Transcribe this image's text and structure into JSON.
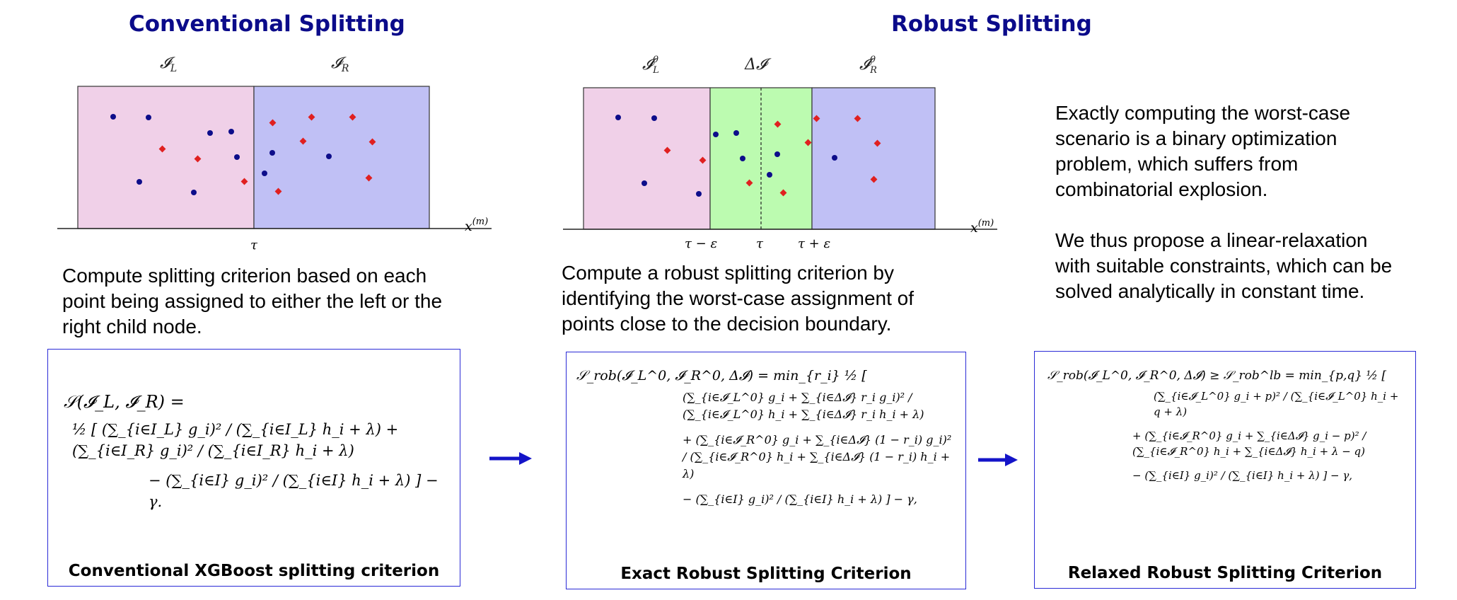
{
  "titles": {
    "left": "Conventional Splitting",
    "right": "Robust Splitting"
  },
  "left_diagram": {
    "region_labels": [
      "𝓘_L",
      "𝓘_R"
    ],
    "axis_label": "x^(m)",
    "tick_label": "τ",
    "colors": {
      "left_region": "#f0d0e8",
      "right_region": "#c0c0f5",
      "blue_point": "#0d0d8a",
      "red_point": "#e02020"
    }
  },
  "right_diagram": {
    "region_labels": [
      "𝓘_L^0",
      "Δ𝓘",
      "𝓘_R^0"
    ],
    "axis_label": "x^(m)",
    "tick_labels": [
      "τ − ε",
      "τ",
      "τ + ε"
    ],
    "colors": {
      "left_region": "#f0d0e8",
      "middle_region": "#bcfbb0",
      "right_region": "#c0c0f5"
    }
  },
  "texts": {
    "left_description": "Compute splitting criterion based on each point being assigned to either the left or the right child node.",
    "middle_description": "Compute a robust splitting criterion by identifying the worst-case assignment of points close to the decision boundary.",
    "right_paragraph_1": "Exactly computing the worst-case scenario is a binary optimization problem, which suffers from combinatorial explosion.",
    "right_paragraph_2": "We thus propose a linear-relaxation with suitable constraints, which can be solved analytically in constant time."
  },
  "formulas": {
    "conventional": {
      "lhs": "𝒮(𝓘_L, 𝓘_R) =",
      "line1": "½ [ (∑_{i∈I_L} g_i)² / (∑_{i∈I_L} h_i + λ) + (∑_{i∈I_R} g_i)² / (∑_{i∈I_R} h_i + λ)",
      "line2": "− (∑_{i∈I} g_i)² / (∑_{i∈I} h_i + λ) ] − γ."
    },
    "exact": {
      "lhs": "𝒮_rob(𝓘_L^0, 𝓘_R^0, Δ𝓘) = min_{r_i} ½ [",
      "line1": "(∑_{i∈𝓘_L^0} g_i + ∑_{i∈Δ𝓘} r_i g_i)² / (∑_{i∈𝓘_L^0} h_i + ∑_{i∈Δ𝓘} r_i h_i + λ)",
      "line2": "+ (∑_{i∈𝓘_R^0} g_i + ∑_{i∈Δ𝓘} (1 − r_i) g_i)² / (∑_{i∈𝓘_R^0} h_i + ∑_{i∈Δ𝓘} (1 − r_i) h_i + λ)",
      "line3": "− (∑_{i∈I} g_i)² / (∑_{i∈I} h_i + λ) ] − γ,"
    },
    "relaxed": {
      "lhs": "𝒮_rob(𝓘_L^0, 𝓘_R^0, Δ𝓘) ≥ 𝒮_rob^lb = min_{p,q} ½ [",
      "line1": "(∑_{i∈𝓘_L^0} g_i + p)² / (∑_{i∈𝓘_L^0} h_i + q + λ)",
      "line2": "+ (∑_{i∈𝓘_R^0} g_i + ∑_{i∈Δ𝓘} g_i − p)² / (∑_{i∈𝓘_R^0} h_i + ∑_{i∈Δ𝓘} h_i + λ − q)",
      "line3": "− (∑_{i∈I} g_i)² / (∑_{i∈I} h_i + λ) ] − γ,"
    }
  },
  "captions": {
    "conventional": "Conventional XGBoost splitting criterion",
    "exact": "Exact Robust Splitting Criterion",
    "relaxed": "Relaxed Robust Splitting Criterion"
  },
  "colors": {
    "title": "#0b0b8a",
    "box_border": "#2a2ad6",
    "arrow": "#1414c8"
  },
  "icons": {
    "arrow_1": "right-arrow-icon",
    "arrow_2": "right-arrow-icon"
  }
}
